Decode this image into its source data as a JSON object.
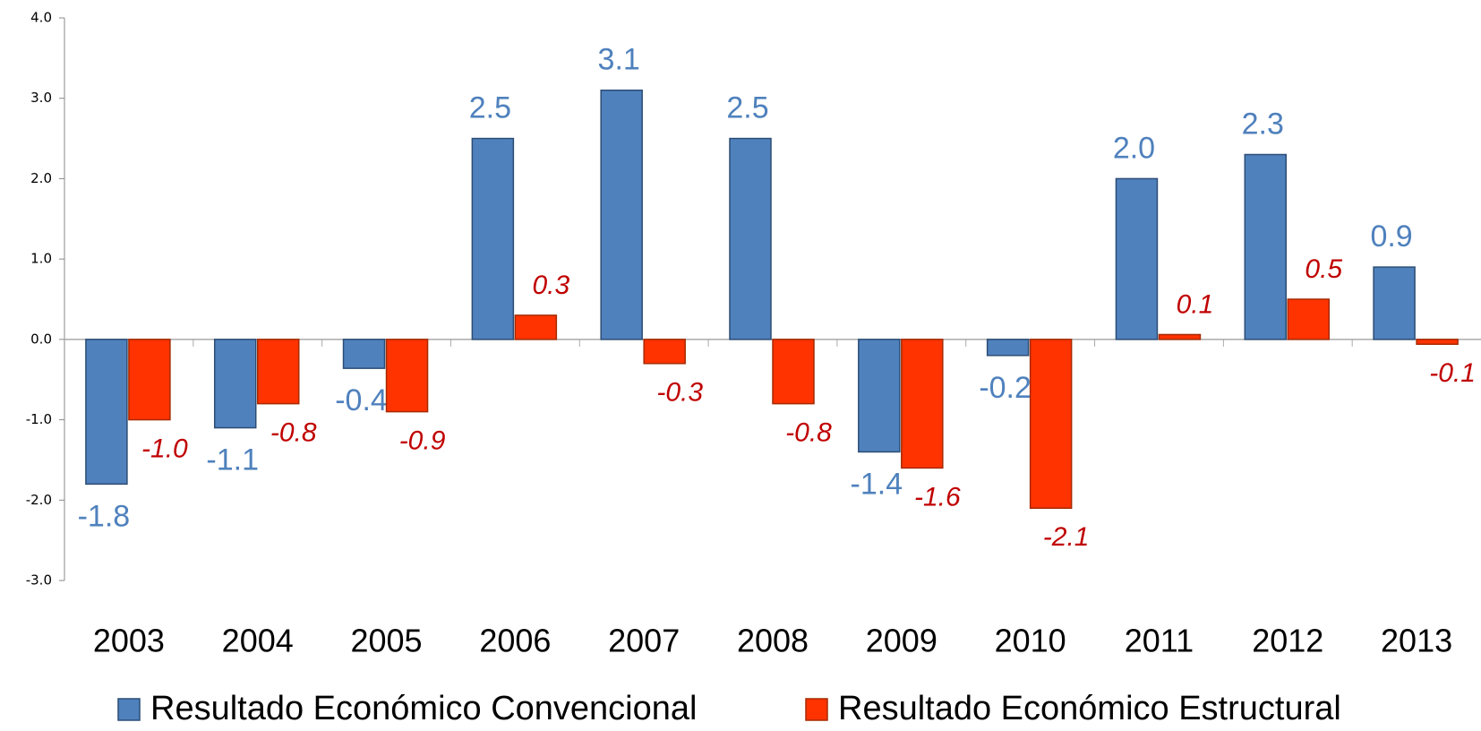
{
  "chart_data": {
    "type": "bar",
    "categories": [
      "2003",
      "2004",
      "2005",
      "2006",
      "2007",
      "2008",
      "2009",
      "2010",
      "2011",
      "2012",
      "2013"
    ],
    "series": [
      {
        "name": "Resultado Económico Convencional",
        "color": "#4f81bd",
        "values": [
          -1.8,
          -1.1,
          -0.36,
          2.5,
          3.1,
          2.5,
          -1.4,
          -0.2,
          2.0,
          2.3,
          0.9
        ],
        "value_labels": [
          "-1.8",
          "-1.1",
          "-0.4",
          "2.5",
          "3.1",
          "2.5",
          "-1.4",
          "-0.2",
          "2.0",
          "2.3",
          "0.9"
        ]
      },
      {
        "name": "Resultado Económico Estructural",
        "color": "#ff3300",
        "values": [
          -1.0,
          -0.8,
          -0.9,
          0.3,
          -0.3,
          -0.8,
          -1.6,
          -2.1,
          0.06,
          0.5,
          -0.06
        ],
        "value_labels": [
          "-1.0",
          "-0.8",
          "-0.9",
          "0.3",
          "-0.3",
          "-0.8",
          "-1.6",
          "-2.1",
          "0.1",
          "0.5",
          "-0.1"
        ]
      }
    ],
    "ylim": [
      -3,
      4
    ],
    "yticks": [
      {
        "value": -3,
        "label": "-3.0"
      },
      {
        "value": -2,
        "label": "-2.0"
      },
      {
        "value": -1,
        "label": "-1.0"
      },
      {
        "value": 0,
        "label": "0.0"
      },
      {
        "value": 1,
        "label": "1.0"
      },
      {
        "value": 2,
        "label": "2.0"
      },
      {
        "value": 3,
        "label": "3.0"
      },
      {
        "value": 4,
        "label": "4.0"
      }
    ],
    "legend": "bottom"
  }
}
